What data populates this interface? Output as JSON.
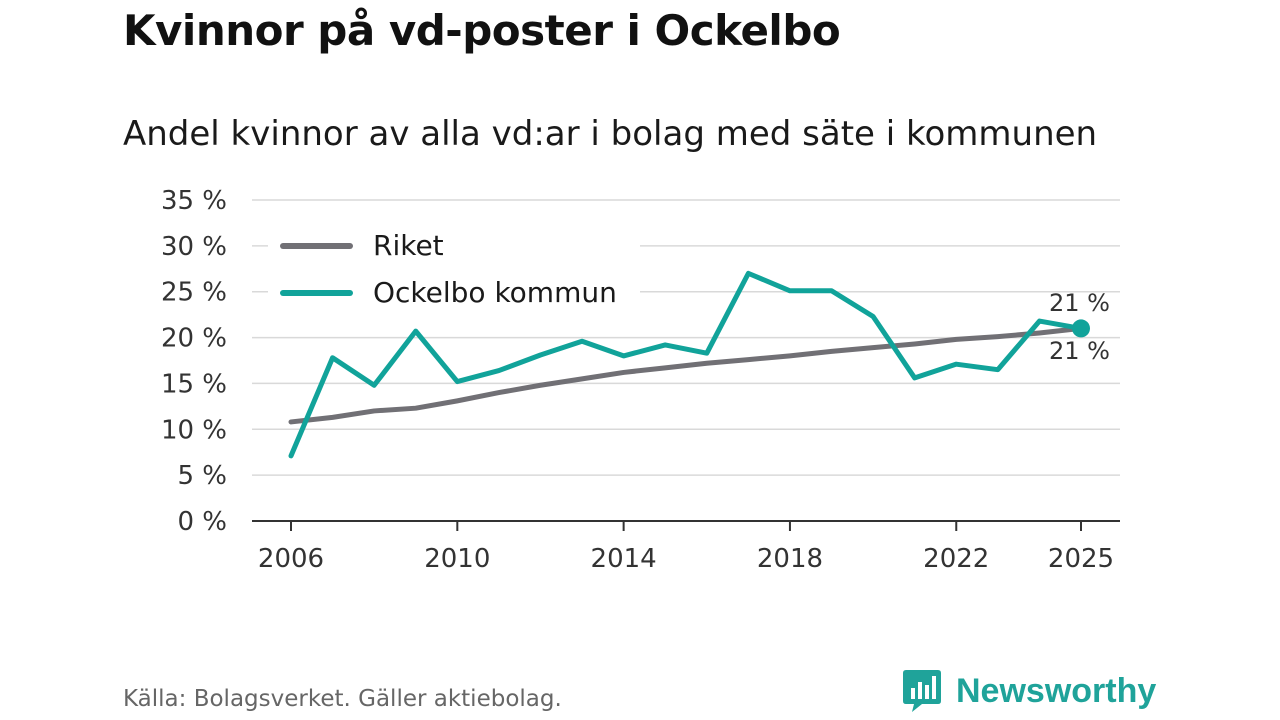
{
  "title": "Kvinnor på vd-poster i Ockelbo",
  "subtitle": "Andel kvinnor av alla vd:ar i bolag med säte i kommunen",
  "source": "Källa: Bolagsverket. Gäller aktiebolag.",
  "brand": {
    "name": "Newsworthy",
    "logo": "newsworthy-logo-icon"
  },
  "colors": {
    "riket": "#717075",
    "ockelbo": "#11a39a",
    "grid": "#d9d9d9",
    "axis": "#333333"
  },
  "chart_data": {
    "type": "line",
    "title": "Kvinnor på vd-poster i Ockelbo",
    "subtitle": "Andel kvinnor av alla vd:ar i bolag med säte i kommunen",
    "xlabel": "",
    "ylabel": "",
    "ylim": [
      0,
      35
    ],
    "y_ticks": [
      0,
      5,
      10,
      15,
      20,
      25,
      30,
      35
    ],
    "y_tick_labels": [
      "0 %",
      "5 %",
      "10 %",
      "15 %",
      "20 %",
      "25 %",
      "30 %",
      "35 %"
    ],
    "x_ticks": [
      2006,
      2010,
      2014,
      2018,
      2022,
      2025
    ],
    "x_tick_labels": [
      "2006",
      "2010",
      "2014",
      "2018",
      "2022",
      "2025"
    ],
    "grid": true,
    "legend_position": "top-left",
    "x": [
      2006,
      2007,
      2008,
      2009,
      2010,
      2011,
      2012,
      2013,
      2014,
      2015,
      2016,
      2017,
      2018,
      2019,
      2020,
      2021,
      2022,
      2023,
      2024,
      2025
    ],
    "series": [
      {
        "name": "Riket",
        "color": "#717075",
        "values": [
          10.8,
          11.3,
          12.0,
          12.3,
          13.1,
          14.0,
          14.8,
          15.5,
          16.2,
          16.7,
          17.2,
          17.6,
          18.0,
          18.5,
          18.9,
          19.3,
          19.8,
          20.1,
          20.5,
          21.0
        ],
        "end_label": "21 %"
      },
      {
        "name": "Ockelbo kommun",
        "color": "#11a39a",
        "values": [
          7.1,
          17.8,
          14.8,
          20.7,
          15.2,
          16.4,
          18.1,
          19.6,
          18.0,
          19.2,
          18.3,
          27.0,
          25.1,
          25.1,
          22.3,
          15.6,
          17.1,
          16.5,
          21.8,
          21.0
        ],
        "end_label": "21 %"
      }
    ]
  }
}
